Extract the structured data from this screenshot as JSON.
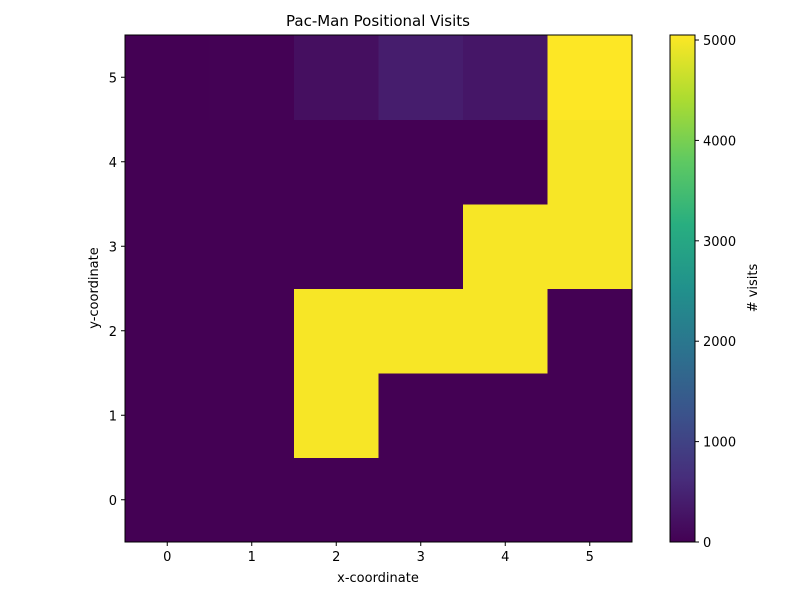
{
  "chart_data": {
    "type": "heatmap",
    "title": "Pac-Man Positional Visits",
    "xlabel": "x-coordinate",
    "ylabel": "y-coordinate",
    "x": [
      0,
      1,
      2,
      3,
      4,
      5
    ],
    "y": [
      0,
      1,
      2,
      3,
      4,
      5
    ],
    "x_tick_labels": [
      "0",
      "1",
      "2",
      "3",
      "4",
      "5"
    ],
    "y_tick_labels": [
      "0",
      "1",
      "2",
      "3",
      "4",
      "5"
    ],
    "values": [
      [
        5,
        5,
        5,
        5,
        5,
        5
      ],
      [
        5,
        5,
        5000,
        5,
        5,
        5
      ],
      [
        5,
        5,
        5000,
        5000,
        5000,
        5
      ],
      [
        5,
        5,
        5,
        5,
        5000,
        5000
      ],
      [
        5,
        5,
        5,
        5,
        5,
        5000
      ],
      [
        5,
        10,
        200,
        400,
        300,
        5050
      ]
    ],
    "colormap": "viridis",
    "colorbar": {
      "label": "# visits",
      "range": [
        0,
        5050
      ],
      "ticks": [
        0,
        1000,
        2000,
        3000,
        4000,
        5000
      ],
      "tick_labels": [
        "0",
        "1000",
        "2000",
        "3000",
        "4000",
        "5000"
      ]
    },
    "origin": "lower",
    "grid": false
  }
}
